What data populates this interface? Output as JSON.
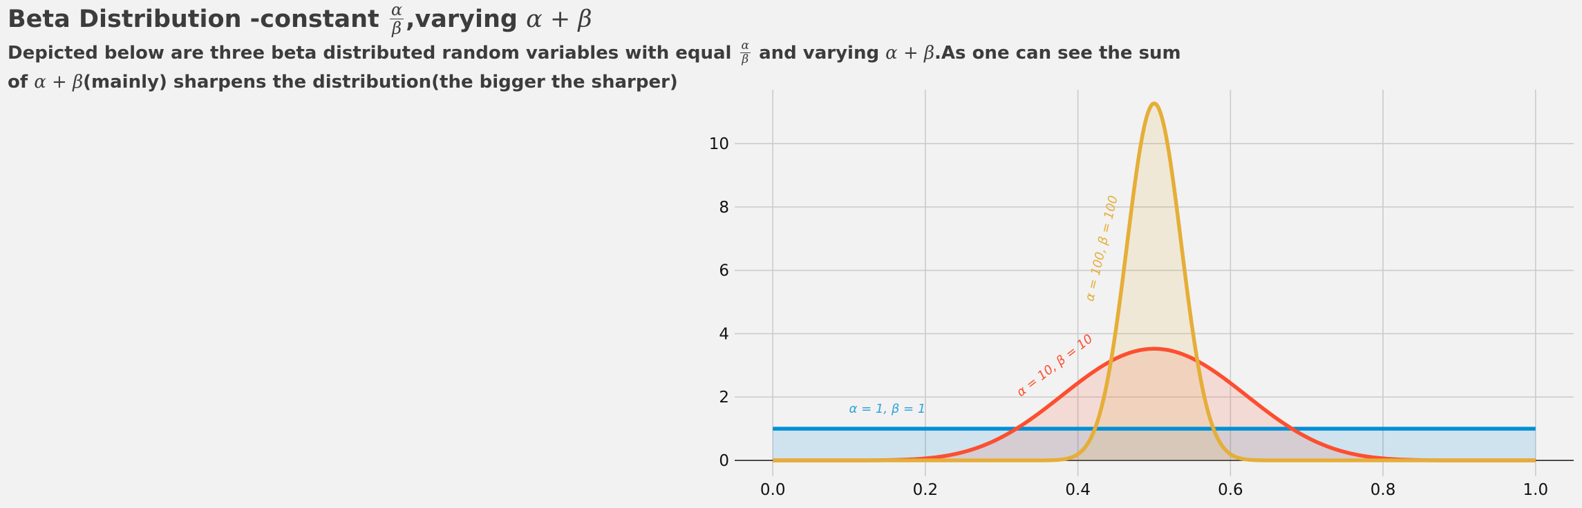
{
  "header": {
    "title_pre": "Beta Distribution -constant ",
    "title_frac_num": "α",
    "title_frac_den": "β",
    "title_post_text": ",varying ",
    "title_math": "α + β",
    "sub1_pre": "Depicted below are three beta distributed random variables with equal ",
    "sub1_frac_num": "α",
    "sub1_frac_den": "β",
    "sub1_mid": " and varying ",
    "sub1_math": "α + β",
    "sub1_post": ".As one can see the sum",
    "sub2_pre": "of ",
    "sub2_math": "α + β",
    "sub2_post": "(mainly) sharpens the distribution(the bigger the sharper)"
  },
  "colors": {
    "background": "#f2f2f2",
    "grid": "#cbcbcb",
    "text": "#3c3c3c"
  },
  "chart_data": {
    "type": "area",
    "x_range": [
      0,
      1
    ],
    "xlim": [
      -0.05,
      1.05
    ],
    "ylim": [
      -0.5,
      11.7
    ],
    "x_ticks": [
      0.0,
      0.2,
      0.4,
      0.6,
      0.8,
      1.0
    ],
    "x_tick_labels": [
      "0.0",
      "0.2",
      "0.4",
      "0.6",
      "0.8",
      "1.0"
    ],
    "y_ticks": [
      0,
      2,
      4,
      6,
      8,
      10
    ],
    "y_tick_labels": [
      "0",
      "2",
      "4",
      "6",
      "8",
      "10"
    ],
    "grid": true,
    "series": [
      {
        "alpha": 1,
        "beta": 1,
        "color": "#008fd5",
        "fill_opacity": 0.15,
        "label": "α = 1, β = 1",
        "label_x": 0.1,
        "label_y": 1.5,
        "label_rotation": 0,
        "label_color": "#30a2da"
      },
      {
        "alpha": 10,
        "beta": 10,
        "color": "#fc4f30",
        "fill_opacity": 0.15,
        "label": "α = 10, β = 10",
        "label_x": 0.325,
        "label_y": 2.0,
        "label_rotation": -38,
        "label_color": "#fc4f30"
      },
      {
        "alpha": 100,
        "beta": 100,
        "color": "#e5ae38",
        "fill_opacity": 0.15,
        "label": "α = 100, β = 100",
        "label_x": 0.42,
        "label_y": 5.0,
        "label_rotation": -77,
        "label_color": "#e5ae38"
      }
    ]
  }
}
